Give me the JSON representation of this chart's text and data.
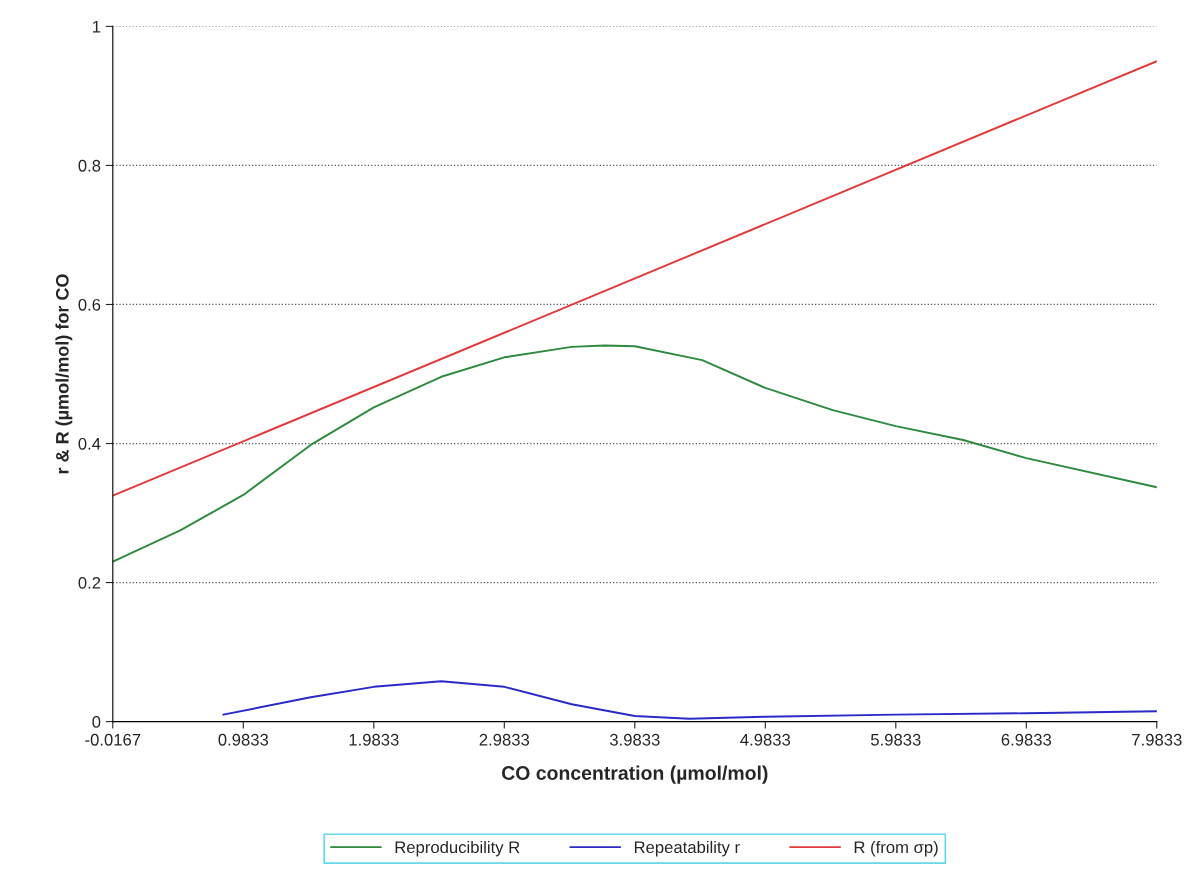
{
  "chart_data": {
    "type": "line",
    "xlabel": "CO concentration (µmol/mol)",
    "ylabel": "r & R (µmol/mol) for CO",
    "xlim": [
      -0.0167,
      7.9833
    ],
    "xticks": [
      -0.0167,
      0.9833,
      1.9833,
      2.9833,
      3.9833,
      4.9833,
      5.9833,
      6.9833,
      7.9833
    ],
    "ylim": [
      0,
      1
    ],
    "yticks": [
      0,
      0.2,
      0.4,
      0.6,
      0.8,
      1
    ],
    "grid": "y",
    "legend": "bottom",
    "marker": "none",
    "line_style": "solid",
    "series": [
      {
        "name": "Reproducibility R",
        "color": "#2e8b3e",
        "x": [
          -0.0167,
          0.5,
          0.9833,
          1.5,
          1.9833,
          2.5,
          2.9833,
          3.5,
          3.75,
          3.9833,
          4.5,
          4.9833,
          5.5,
          5.9833,
          6.5,
          6.9833,
          7.9833
        ],
        "values": [
          0.23,
          0.275,
          0.326,
          0.398,
          0.452,
          0.496,
          0.524,
          0.539,
          0.541,
          0.54,
          0.52,
          0.48,
          0.448,
          0.425,
          0.405,
          0.379,
          0.337
        ]
      },
      {
        "name": "Repeatability r",
        "color": "#2a2ac8",
        "x": [
          0.83,
          1.5,
          1.9833,
          2.5,
          2.9833,
          3.5,
          3.9833,
          4.4,
          4.9833,
          5.9833,
          6.9833,
          7.9833
        ],
        "values": [
          0.01,
          0.035,
          0.05,
          0.058,
          0.05,
          0.025,
          0.008,
          0.004,
          0.007,
          0.01,
          0.012,
          0.015
        ]
      },
      {
        "name": "R (from σp)",
        "color": "#e03a3a",
        "x": [
          -0.0167,
          7.9833
        ],
        "values": [
          0.325,
          0.95
        ]
      }
    ]
  }
}
